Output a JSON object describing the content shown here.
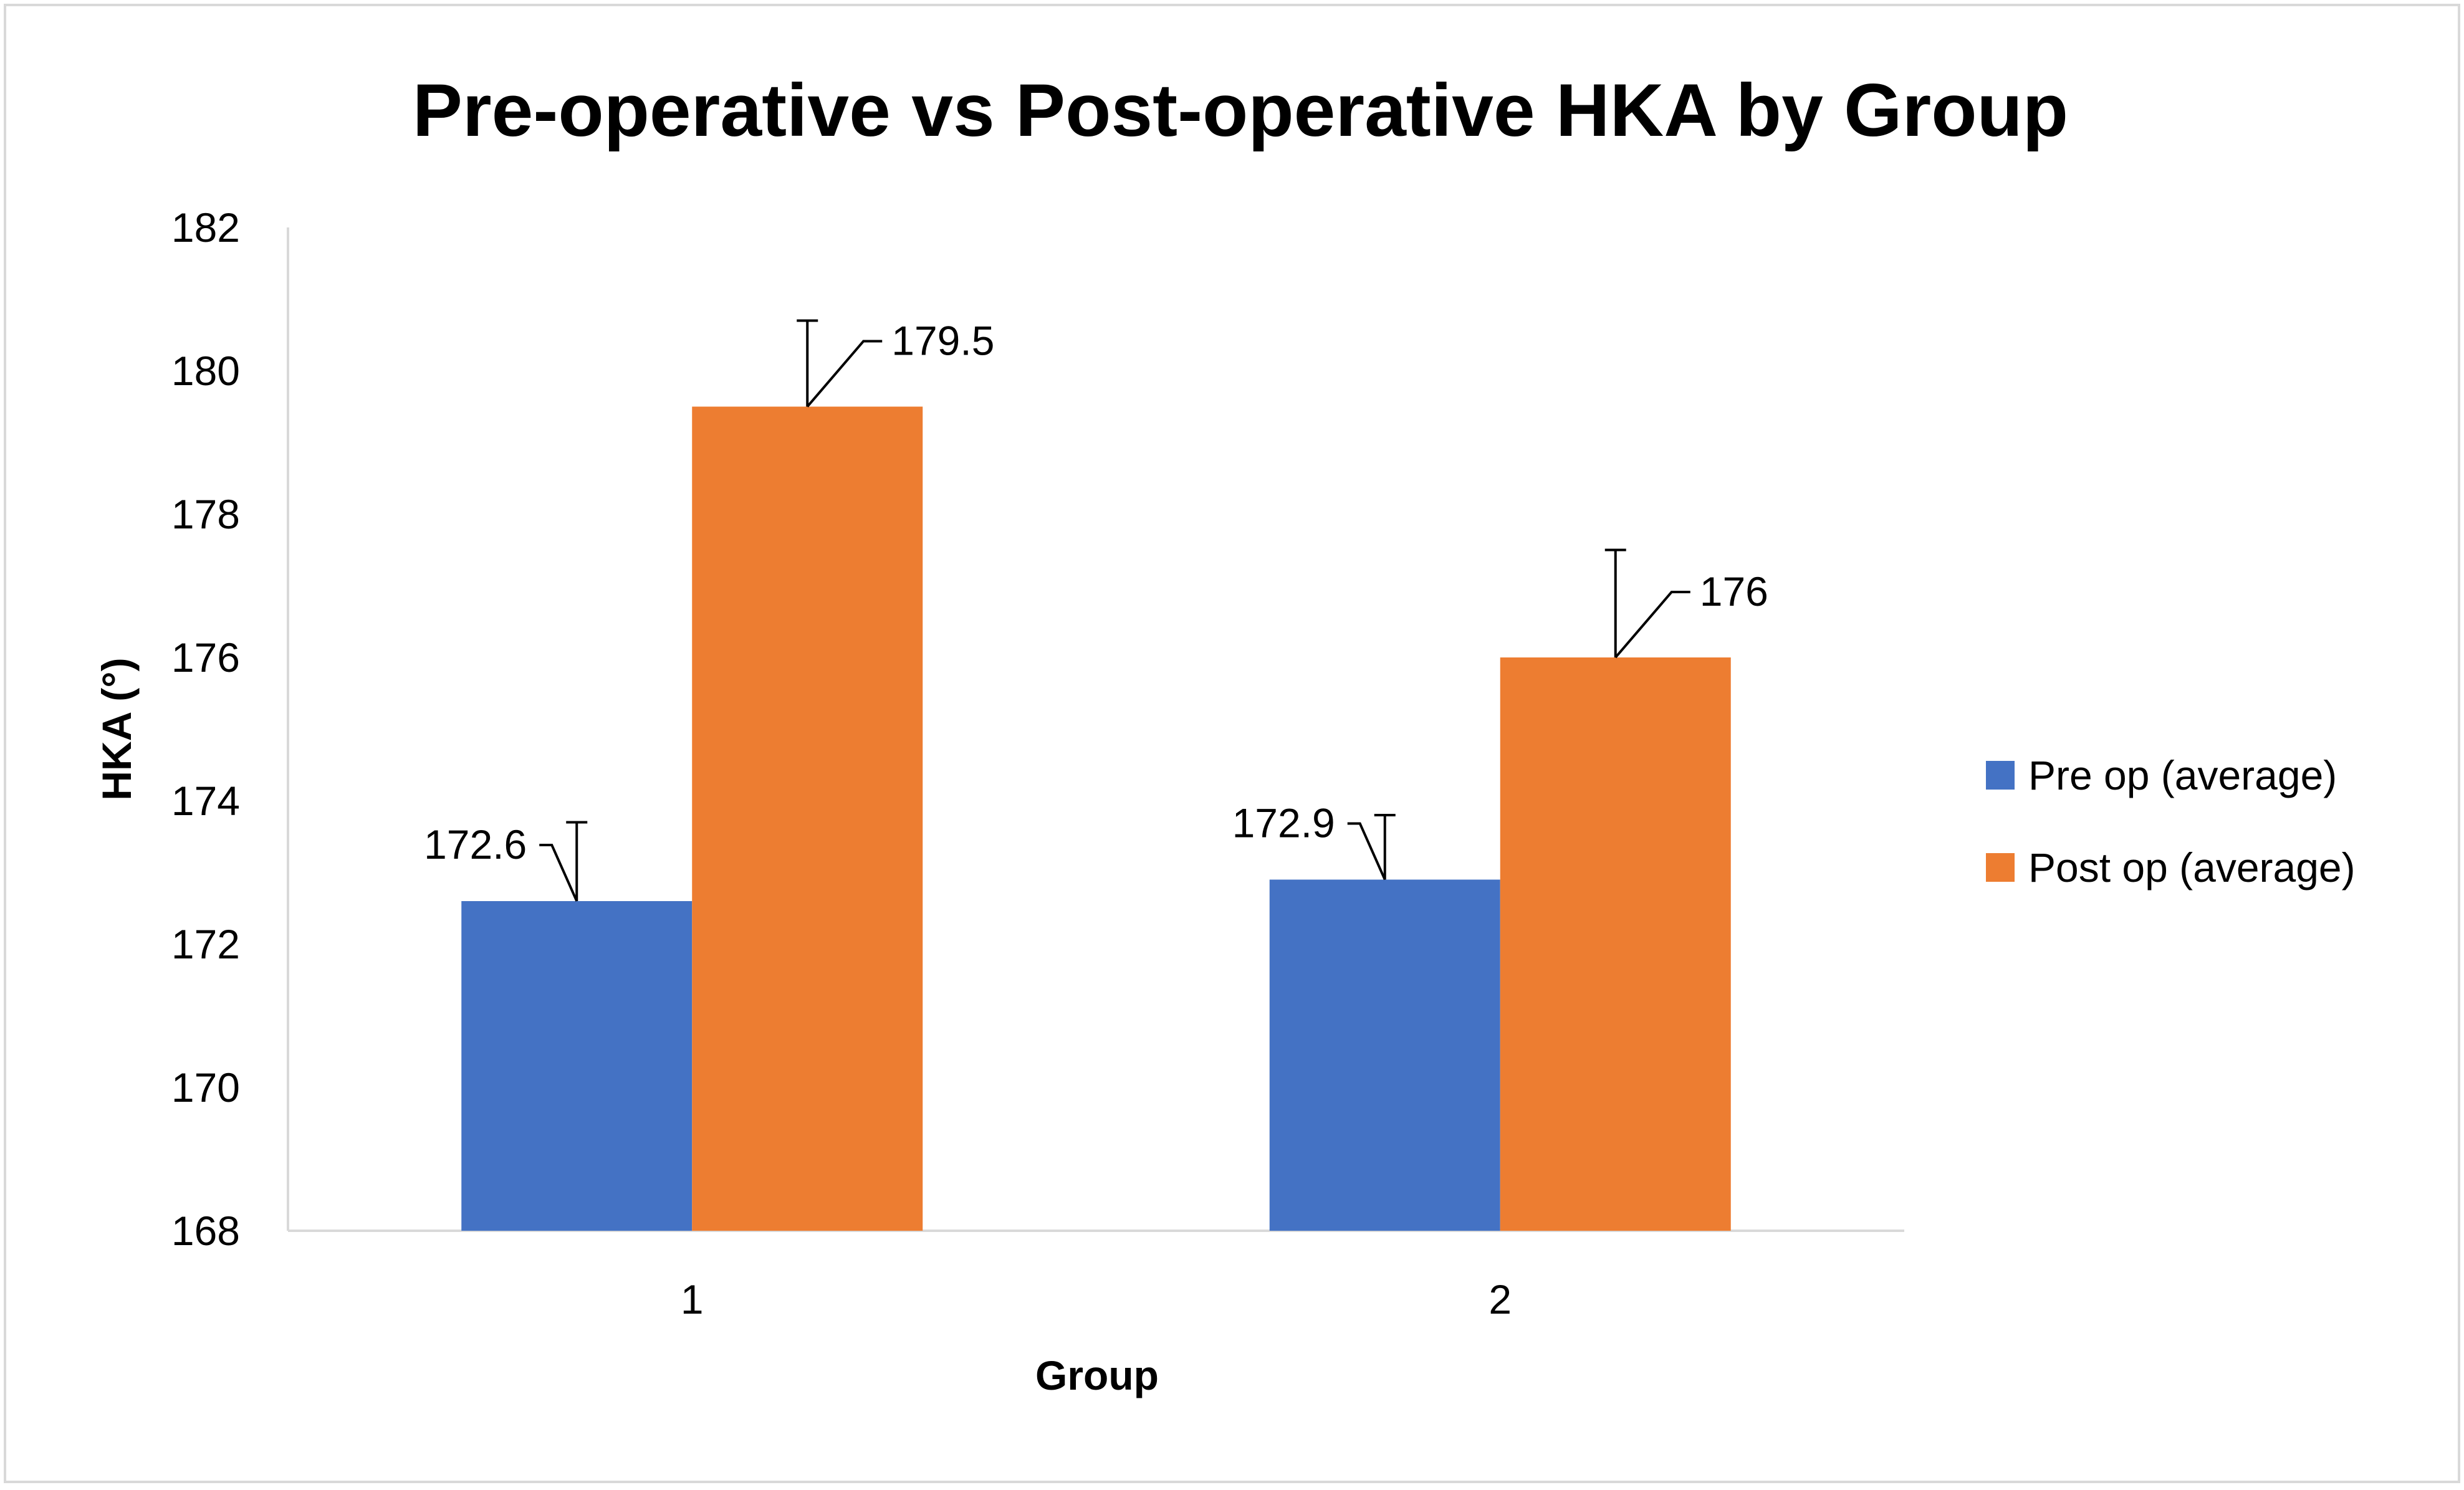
{
  "chart_data": {
    "type": "bar",
    "title": "Pre-operative vs Post-operative HKA by Group",
    "xlabel": "Group",
    "ylabel": "HKA (°)",
    "categories": [
      "1",
      "2"
    ],
    "ylim": [
      168,
      182
    ],
    "yticks": [
      168,
      170,
      172,
      174,
      176,
      178,
      180,
      182
    ],
    "grid": false,
    "legend_position": "right",
    "series": [
      {
        "name": "Pre op (average)",
        "color": "#4472C4",
        "values": [
          172.6,
          172.9
        ],
        "error_plus": [
          1.1,
          0.9
        ],
        "data_labels": [
          "172.6",
          "172.9"
        ]
      },
      {
        "name": "Post op (average)",
        "color": "#ED7D31",
        "values": [
          179.5,
          176
        ],
        "error_plus": [
          1.2,
          1.5
        ],
        "data_labels": [
          "179.5",
          "176"
        ]
      }
    ]
  }
}
